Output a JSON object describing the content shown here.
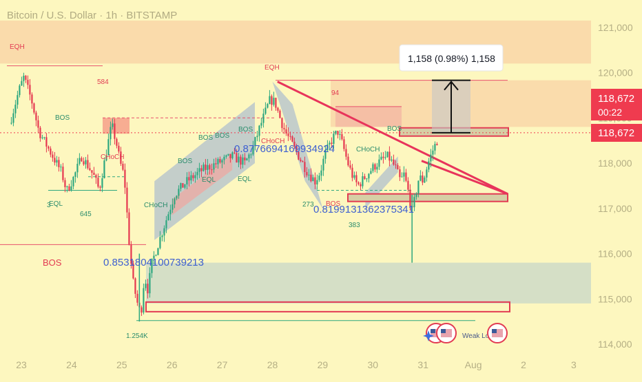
{
  "header": {
    "title": "Bitcoin / U.S. Dollar · 1h · BITSTAMP"
  },
  "colors": {
    "background": "#fdf7bf",
    "up_candle": "#2da77f",
    "down_candle": "#e5364f",
    "zone": "#f9d7a8",
    "demand_zone": "#d3ddc6",
    "channel_blue": "#7f9bd8",
    "trend_line": "#e8345b",
    "price_badge": "#ef3b4f",
    "measure_zone": "#c7c7c7"
  },
  "chart_data": {
    "type": "candlestick",
    "title": "",
    "xlabel": "",
    "ylabel": "",
    "x_ticks": [
      "23",
      "24",
      "25",
      "26",
      "27",
      "28",
      "29",
      "30",
      "31",
      "Aug",
      "2",
      "3"
    ],
    "y_ticks": [
      "121,000",
      "120,000",
      "119,000",
      "118,000",
      "117,000",
      "116,000",
      "115,000",
      "114,000"
    ],
    "ylim": [
      113800,
      121300
    ],
    "grid": false,
    "price_path": [
      [
        22.8,
        119000
      ],
      [
        22.95,
        119600
      ],
      [
        23.05,
        119900
      ],
      [
        23.2,
        119400
      ],
      [
        23.35,
        118700
      ],
      [
        23.55,
        118300
      ],
      [
        23.7,
        118000
      ],
      [
        23.8,
        117800
      ],
      [
        23.9,
        117380
      ],
      [
        24.05,
        117700
      ],
      [
        24.2,
        118150
      ],
      [
        24.35,
        117900
      ],
      [
        24.45,
        117700
      ],
      [
        24.55,
        117400
      ],
      [
        24.7,
        118300
      ],
      [
        24.8,
        118850
      ],
      [
        24.9,
        118400
      ],
      [
        24.97,
        118000
      ],
      [
        25.05,
        117700
      ],
      [
        25.15,
        116200
      ],
      [
        25.22,
        115400
      ],
      [
        25.3,
        114950
      ],
      [
        25.38,
        114650
      ],
      [
        25.45,
        115500
      ],
      [
        25.52,
        115200
      ],
      [
        25.6,
        115800
      ],
      [
        25.75,
        116300
      ],
      [
        25.9,
        116800
      ],
      [
        26.05,
        117300
      ],
      [
        26.3,
        117600
      ],
      [
        26.6,
        117850
      ],
      [
        26.9,
        118000
      ],
      [
        27.2,
        118150
      ],
      [
        27.45,
        118000
      ],
      [
        27.6,
        118300
      ],
      [
        27.75,
        118800
      ],
      [
        27.85,
        119100
      ],
      [
        27.95,
        119400
      ],
      [
        28.05,
        119350
      ],
      [
        28.15,
        119000
      ],
      [
        28.25,
        118700
      ],
      [
        28.4,
        118400
      ],
      [
        28.55,
        118100
      ],
      [
        28.7,
        117800
      ],
      [
        28.85,
        117600
      ],
      [
        28.95,
        117800
      ],
      [
        29.05,
        118200
      ],
      [
        29.2,
        118550
      ],
      [
        29.3,
        118700
      ],
      [
        29.4,
        118400
      ],
      [
        29.5,
        118000
      ],
      [
        29.6,
        117700
      ],
      [
        29.7,
        117500
      ],
      [
        29.85,
        117700
      ],
      [
        30.0,
        117900
      ],
      [
        30.15,
        118050
      ],
      [
        30.3,
        118150
      ],
      [
        30.45,
        117900
      ],
      [
        30.55,
        117600
      ],
      [
        30.62,
        117750
      ],
      [
        30.72,
        117300
      ],
      [
        30.78,
        116900
      ],
      [
        30.85,
        117300
      ],
      [
        30.92,
        117700
      ],
      [
        31.0,
        117600
      ],
      [
        31.1,
        118000
      ],
      [
        31.2,
        118300
      ],
      [
        31.3,
        118550
      ]
    ],
    "annotations": {
      "zone_labels": [
        "EQH",
        "584",
        "EQH",
        "94"
      ],
      "structure_labels": [
        "BOS",
        "BOS",
        "BOS",
        "BOS",
        "BOS",
        "BOS",
        "BOS",
        "BOS"
      ],
      "choch_labels": [
        "CHoCH",
        "CHoCH",
        "CHoCH",
        "CHoCH"
      ],
      "eql_labels": [
        "EQL",
        "EQL",
        "EQL"
      ],
      "numbers": [
        "3",
        "645",
        "273",
        "383",
        "1.254K"
      ],
      "fib_values": [
        "0.8776694169934924",
        "0.8199131362375341",
        "0.8531804100739213"
      ],
      "weak_label": "Weak Lo"
    },
    "measure": {
      "label": "1,158 (0.98%) 1,158",
      "from": 118672,
      "to": 119830
    },
    "current_price": {
      "value": "118,672",
      "countdown": "00:22"
    }
  }
}
